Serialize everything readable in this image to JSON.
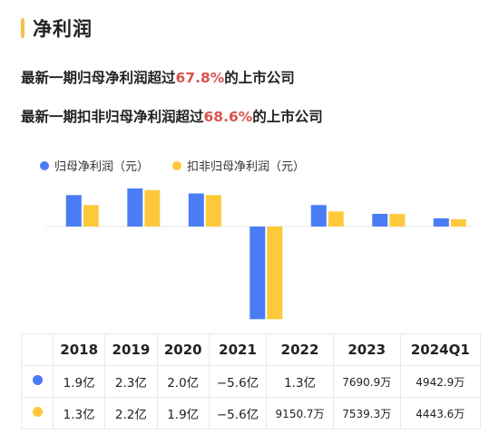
{
  "header": {
    "title": "净利润",
    "accent_color": "#f5c24c"
  },
  "headlines": [
    {
      "prefix": "最新一期归母净利润超过",
      "highlight": "67.8%",
      "suffix": "的上市公司"
    },
    {
      "prefix": "最新一期扣非归母净利润超过",
      "highlight": "68.6%",
      "suffix": "的上市公司"
    }
  ],
  "colors": {
    "series1": "#4a7cf6",
    "series2": "#fdc93b",
    "highlight": "#d9534f"
  },
  "chart_data": {
    "type": "bar",
    "categories": [
      "2018",
      "2019",
      "2020",
      "2021",
      "2022",
      "2023",
      "2024Q1"
    ],
    "series": [
      {
        "name": "归母净利润（元）",
        "values": [
          190000000,
          230000000,
          200000000,
          -560000000,
          130000000,
          76909000,
          49429000
        ],
        "labels": [
          "1.9亿",
          "2.3亿",
          "2.0亿",
          "−5.6亿",
          "1.3亿",
          "7690.9万",
          "4942.9万"
        ]
      },
      {
        "name": "扣非归母净利润（元）",
        "values": [
          130000000,
          220000000,
          190000000,
          -560000000,
          91507000,
          75393000,
          44436000
        ],
        "labels": [
          "1.3亿",
          "2.2亿",
          "1.9亿",
          "−5.6亿",
          "9150.7万",
          "7539.3万",
          "4443.6万"
        ]
      }
    ],
    "legend_position": "top-left",
    "grid": false
  }
}
